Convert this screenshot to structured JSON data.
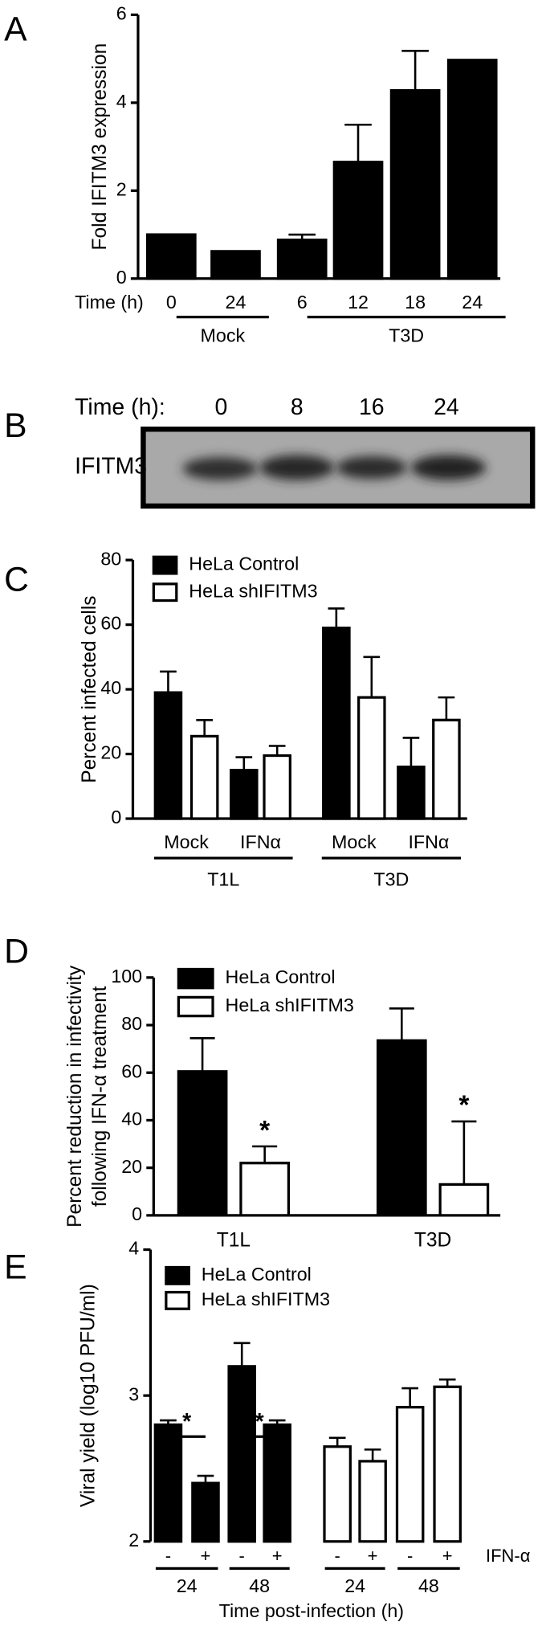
{
  "chart_data": [
    {
      "type": "bar",
      "panel": "A",
      "y_label": "Fold IFITM3 expression",
      "x_label": "Time (h)",
      "categories": [
        "0",
        "24",
        "6",
        "12",
        "18",
        "24"
      ],
      "values": [
        1,
        0.62,
        0.88,
        2.65,
        4.28,
        4.97
      ],
      "errors": [
        null,
        null,
        0.12,
        0.85,
        0.9,
        null
      ],
      "color": "#000000",
      "groups": [
        {
          "label": "Mock",
          "count": 2
        },
        {
          "label": "T3D",
          "count": 4
        }
      ],
      "ylim": [
        0,
        6
      ],
      "yticks": [
        0,
        2,
        4,
        6
      ]
    },
    {
      "type": "blot",
      "panel": "B",
      "x_label": "Time (h):",
      "categories": [
        "0",
        "8",
        "16",
        "24"
      ],
      "row_label": "IFITM3"
    },
    {
      "type": "bar",
      "panel": "C",
      "y_label": "Percent infected cells",
      "categories": [
        "Mock",
        "IFNα",
        "Mock",
        "IFNα"
      ],
      "groups": [
        {
          "label": "T1L",
          "count": 2
        },
        {
          "label": "T3D",
          "count": 2
        }
      ],
      "series": [
        {
          "name": "HeLa Control",
          "color": "#000000",
          "values": [
            39,
            15,
            59,
            16
          ],
          "errors": [
            6.5,
            4,
            6,
            9
          ]
        },
        {
          "name": "HeLa shIFITM3",
          "color": "#ffffff",
          "values": [
            25.5,
            19.5,
            37.5,
            30.5
          ],
          "errors": [
            5,
            3,
            12.5,
            7
          ]
        }
      ],
      "ylim": [
        0,
        80
      ],
      "yticks": [
        0,
        20,
        40,
        60,
        80
      ]
    },
    {
      "type": "bar",
      "panel": "D",
      "y_label": [
        "Percent reduction in infectivity",
        "following IFN-α treatment"
      ],
      "categories": [
        "T1L",
        "T3D"
      ],
      "series": [
        {
          "name": "HeLa Control",
          "color": "#000000",
          "values": [
            60.5,
            73.5
          ],
          "errors": [
            14,
            13.5
          ]
        },
        {
          "name": "HeLa shIFITM3",
          "color": "#ffffff",
          "values": [
            22,
            13
          ],
          "errors": [
            7,
            26.5
          ]
        }
      ],
      "annotations": [
        "*",
        "*"
      ],
      "ylim": [
        0,
        100
      ],
      "yticks": [
        0,
        20,
        40,
        60,
        80,
        100
      ]
    },
    {
      "type": "bar",
      "panel": "E",
      "y_label": "Viral yield  (log10 PFU/ml)",
      "x_label": "Time post-infection (h)",
      "category_label": "IFN-α",
      "categories": [
        "-",
        "+",
        "-",
        "+",
        "-",
        "+",
        "-",
        "+"
      ],
      "groups": [
        {
          "label": "24",
          "count": 2
        },
        {
          "label": "48",
          "count": 2
        },
        {
          "label": "24",
          "count": 2
        },
        {
          "label": "48",
          "count": 2
        }
      ],
      "series": [
        {
          "name": "HeLa Control",
          "color": "#000000",
          "values": [
            2.8,
            2.4,
            3.2,
            2.8,
            null,
            null,
            null,
            null
          ],
          "errors": [
            0.03,
            0.05,
            0.16,
            0.03,
            null,
            null,
            null,
            null
          ]
        },
        {
          "name": "HeLa shIFITM3",
          "color": "#ffffff",
          "values": [
            null,
            null,
            null,
            null,
            2.65,
            2.55,
            2.92,
            3.06
          ],
          "errors": [
            null,
            null,
            null,
            null,
            0.06,
            0.08,
            0.13,
            0.05
          ]
        }
      ],
      "annotations": [
        "*",
        "*"
      ],
      "ylim": [
        2,
        4
      ],
      "yticks": [
        2,
        3,
        4
      ]
    }
  ]
}
